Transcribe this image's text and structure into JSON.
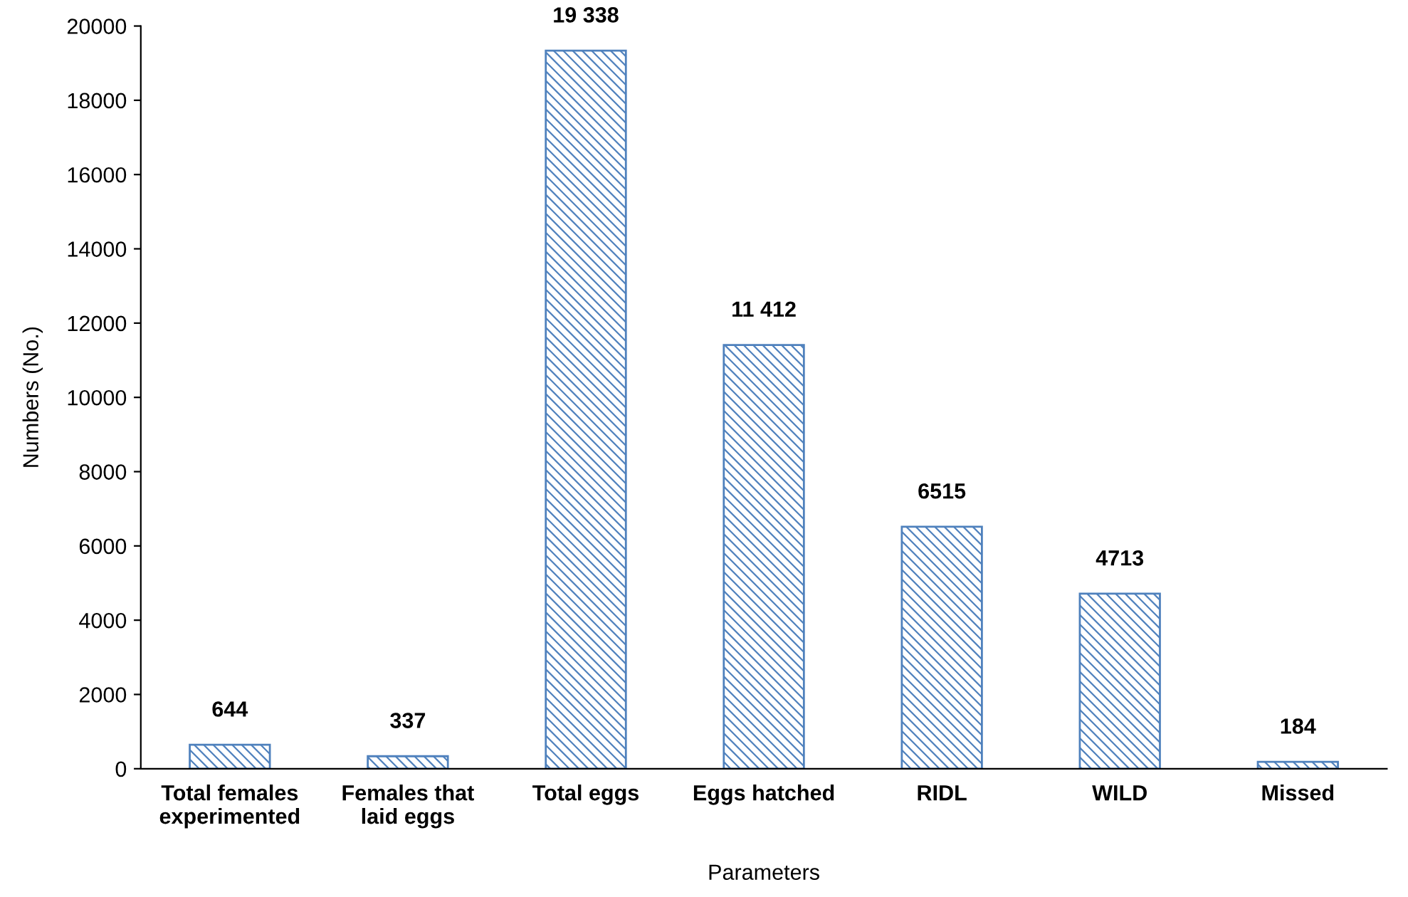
{
  "chart_data": {
    "type": "bar",
    "categories": [
      "Total females experimented",
      "Females that laid eggs",
      "Total eggs",
      "Eggs hatched",
      "RIDL",
      "WILD",
      "Missed"
    ],
    "values": [
      644,
      337,
      19338,
      11412,
      6515,
      4713,
      184
    ],
    "value_labels": [
      "644",
      "337",
      "19 338",
      "11 412",
      "6515",
      "4713",
      "184"
    ],
    "color": "#4f81bd",
    "xlabel": "Parameters",
    "ylabel": "Numbers (No.)",
    "ylim": [
      0,
      20000
    ],
    "yticks": [
      0,
      2000,
      4000,
      6000,
      8000,
      10000,
      12000,
      14000,
      16000,
      18000,
      20000
    ],
    "grid": false
  }
}
